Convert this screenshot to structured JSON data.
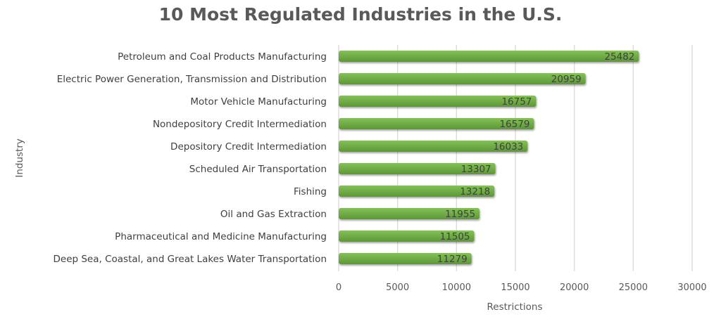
{
  "chart_data": {
    "type": "bar",
    "orientation": "horizontal",
    "title": "10 Most Regulated Industries in the U.S.",
    "xlabel": "Restrictions",
    "ylabel": "Industry",
    "categories": [
      "Petroleum and Coal Products Manufacturing",
      "Electric Power Generation, Transmission and Distribution",
      "Motor Vehicle Manufacturing",
      "Nondepository Credit Intermediation",
      "Depository Credit Intermediation",
      "Scheduled Air Transportation",
      "Fishing",
      "Oil and Gas Extraction",
      "Pharmaceutical and Medicine Manufacturing",
      "Deep Sea, Coastal, and Great Lakes Water Transportation"
    ],
    "values": [
      25482,
      20959,
      16757,
      16579,
      16033,
      13307,
      13218,
      11955,
      11505,
      11279
    ],
    "data_labels": [
      "25482",
      "20959",
      "16757",
      "16579",
      "16033",
      "13307",
      "13218",
      "11955",
      "11505",
      "11279"
    ],
    "xlim": [
      0,
      30000
    ],
    "xticks": [
      "0",
      "5000",
      "10000",
      "15000",
      "20000",
      "25000",
      "30000"
    ],
    "grid": true,
    "legend": "none",
    "colors": {
      "bar": "#70ad47",
      "grid": "#d9d9d9",
      "text": "#595959"
    }
  }
}
